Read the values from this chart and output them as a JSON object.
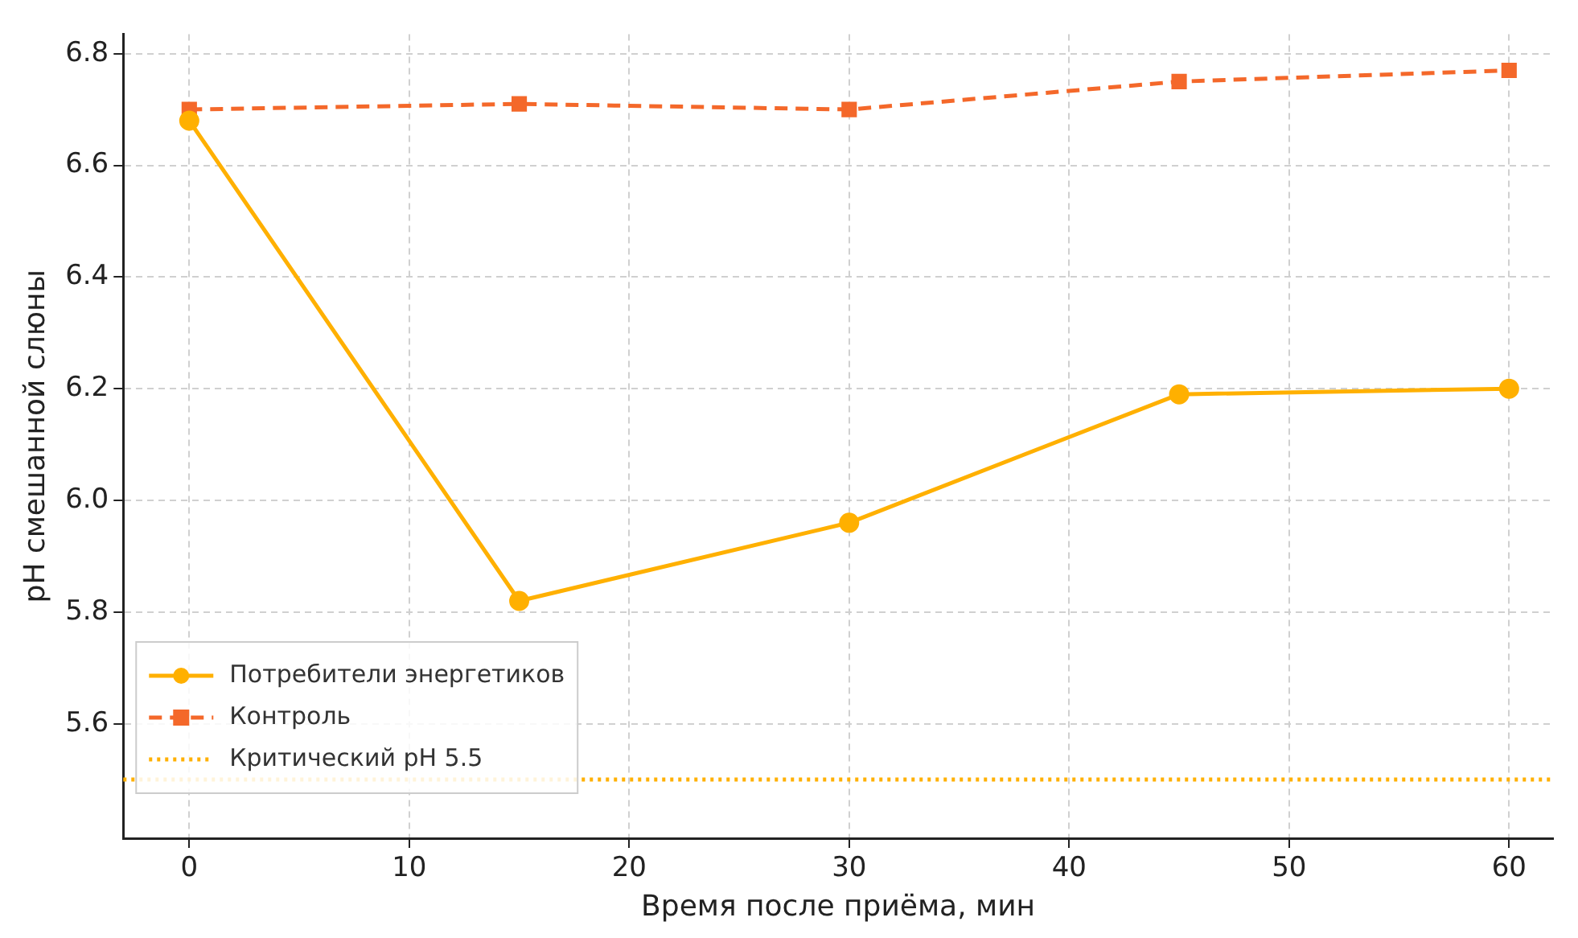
{
  "chart_data": {
    "type": "line",
    "xlabel": "Время после приёма, мин",
    "ylabel": "pH смешанной слюны",
    "x": [
      0,
      15,
      30,
      45,
      60
    ],
    "series": [
      {
        "name": "Потребители энергетиков",
        "color": "#ffb000",
        "values": [
          6.68,
          5.82,
          5.96,
          6.19,
          6.2
        ],
        "marker": "circle",
        "line_style": "solid"
      },
      {
        "name": "Контроль",
        "color": "#f4682a",
        "values": [
          6.7,
          6.71,
          6.7,
          6.75,
          6.77
        ],
        "marker": "square",
        "line_style": "dashed"
      }
    ],
    "ref_lines": [
      {
        "axis": "y",
        "value": 5.5,
        "label": "Критический pH 5.5",
        "color": "#ffb000",
        "line_style": "dotted"
      }
    ],
    "xlim": [
      -3,
      62
    ],
    "xticks": [
      0,
      10,
      20,
      30,
      40,
      50,
      60
    ],
    "ylim": [
      5.395,
      6.835
    ],
    "yticks": [
      5.6,
      5.8,
      {
        "value": 6,
        "label": "6.0"
      },
      6.2,
      6.4,
      6.6,
      6.8
    ],
    "grid": true,
    "legend": "bottom left"
  }
}
